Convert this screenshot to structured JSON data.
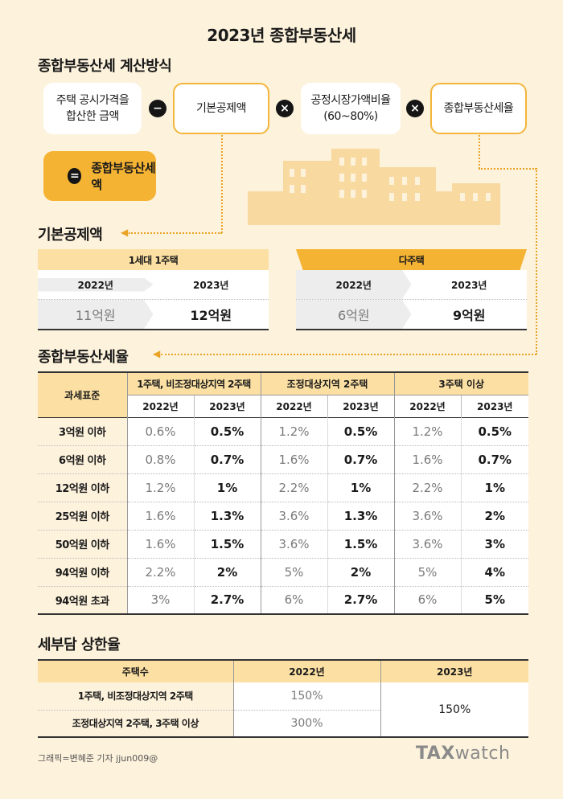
{
  "title": "2023년 종합부동산세",
  "calc": {
    "heading": "종합부동산세 계산방식",
    "box1_line1": "주택 공시가격을",
    "box1_line2": "합산한 금액",
    "op_minus": "−",
    "box2": "기본공제액",
    "op_times1": "×",
    "box3_line1": "공정시장가액비율",
    "box3_line2": "(60~80%)",
    "op_times2": "×",
    "box4": "종합부동산세율",
    "op_equals": "=",
    "result": "종합부동산세액"
  },
  "deduction": {
    "heading": "기본공제액",
    "single": {
      "title": "1세대 1주택",
      "y1": "2022년",
      "y2": "2023년",
      "v1": "11억원",
      "v2": "12억원"
    },
    "multi": {
      "title": "다주택",
      "y1": "2022년",
      "y2": "2023년",
      "v1": "6억원",
      "v2": "9억원"
    }
  },
  "rates": {
    "heading": "종합부동산세율",
    "col_base": "과세표준",
    "groups": [
      "1주택, 비조정대상지역 2주택",
      "조정대상지역 2주택",
      "3주택 이상"
    ],
    "years": [
      "2022년",
      "2023년"
    ],
    "rows": [
      {
        "label": "3억원 이하",
        "vals": [
          "0.6%",
          "0.5%",
          "1.2%",
          "0.5%",
          "1.2%",
          "0.5%"
        ]
      },
      {
        "label": "6억원 이하",
        "vals": [
          "0.8%",
          "0.7%",
          "1.6%",
          "0.7%",
          "1.6%",
          "0.7%"
        ]
      },
      {
        "label": "12억원 이하",
        "vals": [
          "1.2%",
          "1%",
          "2.2%",
          "1%",
          "2.2%",
          "1%"
        ]
      },
      {
        "label": "25억원 이하",
        "vals": [
          "1.6%",
          "1.3%",
          "3.6%",
          "1.3%",
          "3.6%",
          "2%"
        ]
      },
      {
        "label": "50억원 이하",
        "vals": [
          "1.6%",
          "1.5%",
          "3.6%",
          "1.5%",
          "3.6%",
          "3%"
        ]
      },
      {
        "label": "94억원 이하",
        "vals": [
          "2.2%",
          "2%",
          "5%",
          "2%",
          "5%",
          "4%"
        ]
      },
      {
        "label": "94억원 초과",
        "vals": [
          "3%",
          "2.7%",
          "6%",
          "2.7%",
          "6%",
          "5%"
        ]
      }
    ]
  },
  "cap": {
    "heading": "세부담 상한율",
    "col1": "주택수",
    "col2": "2022년",
    "col3": "2023년",
    "row1_label": "1주택, 비조정대상지역 2주택",
    "row1_2022": "150%",
    "row2_label": "조정대상지역 2주택, 3주택 이상",
    "row2_2022": "300%",
    "val_2023": "150%"
  },
  "footer": {
    "credit": "그래픽=변혜준 기자 jjun009@",
    "logo_bold": "TAX",
    "logo_light": "watch"
  }
}
